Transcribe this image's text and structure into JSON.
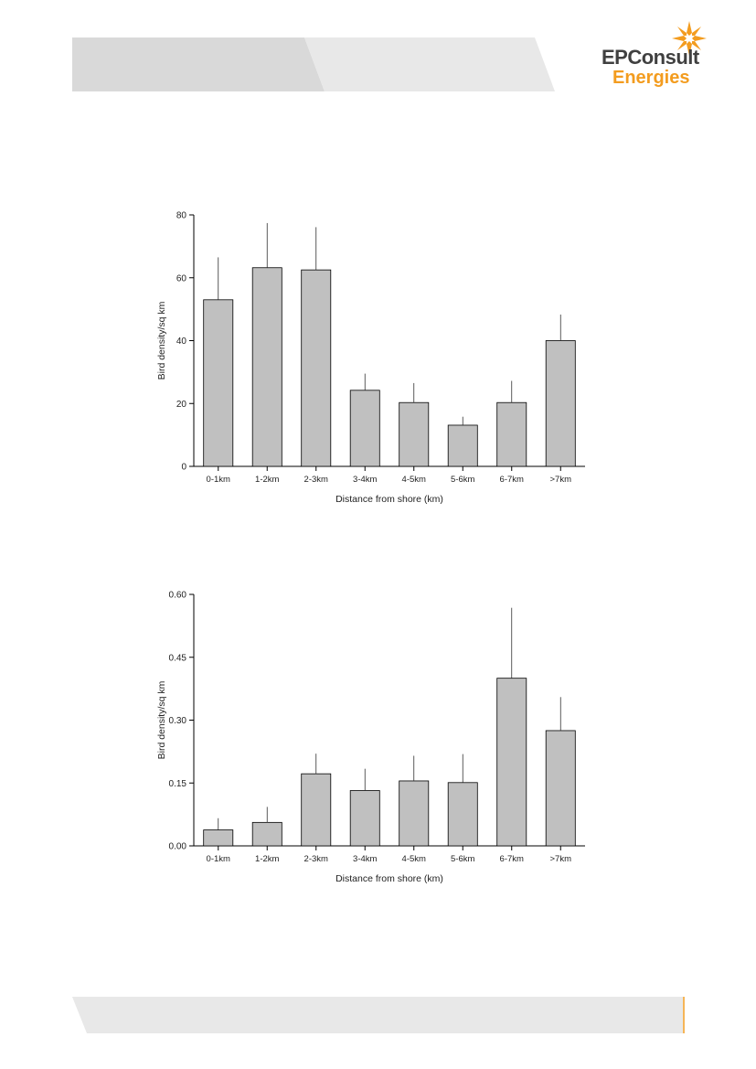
{
  "brand": {
    "name_line1": "EPConsult",
    "name_line2": "Energies",
    "accent_color": "#f39c1f",
    "logo_icon": "star-burst-icon"
  },
  "chart_data": [
    {
      "type": "bar",
      "categories": [
        "0-1km",
        "1-2km",
        "2-3km",
        "3-4km",
        "4-5km",
        "5-6km",
        "6-7km",
        ">7km"
      ],
      "values": [
        53,
        63.2,
        62.5,
        24.2,
        20.3,
        13.1,
        20.3,
        40
      ],
      "errors": [
        13.5,
        14.2,
        13.6,
        5.3,
        6.2,
        2.7,
        6.9,
        8.3
      ],
      "ylim": [
        0,
        80
      ],
      "yticks": [
        0,
        20,
        40,
        60,
        80
      ],
      "ytick_labels": [
        "0",
        "20",
        "40",
        "60",
        "80"
      ],
      "xlabel": "Distance from shore (km)",
      "ylabel": "Bird density/sq km",
      "bar_color": "#c0c0c0",
      "grid": false
    },
    {
      "type": "bar",
      "categories": [
        "0-1km",
        "1-2km",
        "2-3km",
        "3-4km",
        "4-5km",
        "5-6km",
        "6-7km",
        ">7km"
      ],
      "values": [
        0.038,
        0.056,
        0.172,
        0.132,
        0.155,
        0.151,
        0.4,
        0.275
      ],
      "errors": [
        0.028,
        0.037,
        0.048,
        0.052,
        0.06,
        0.068,
        0.168,
        0.08
      ],
      "ylim": [
        0,
        0.6
      ],
      "yticks": [
        0,
        0.15,
        0.3,
        0.45,
        0.6
      ],
      "ytick_labels": [
        "0.00",
        "0.15",
        "0.30",
        "0.45",
        "0.60"
      ],
      "xlabel": "Distance from shore (km)",
      "ylabel": "Bird density/sq km",
      "bar_color": "#c0c0c0",
      "grid": false
    }
  ]
}
